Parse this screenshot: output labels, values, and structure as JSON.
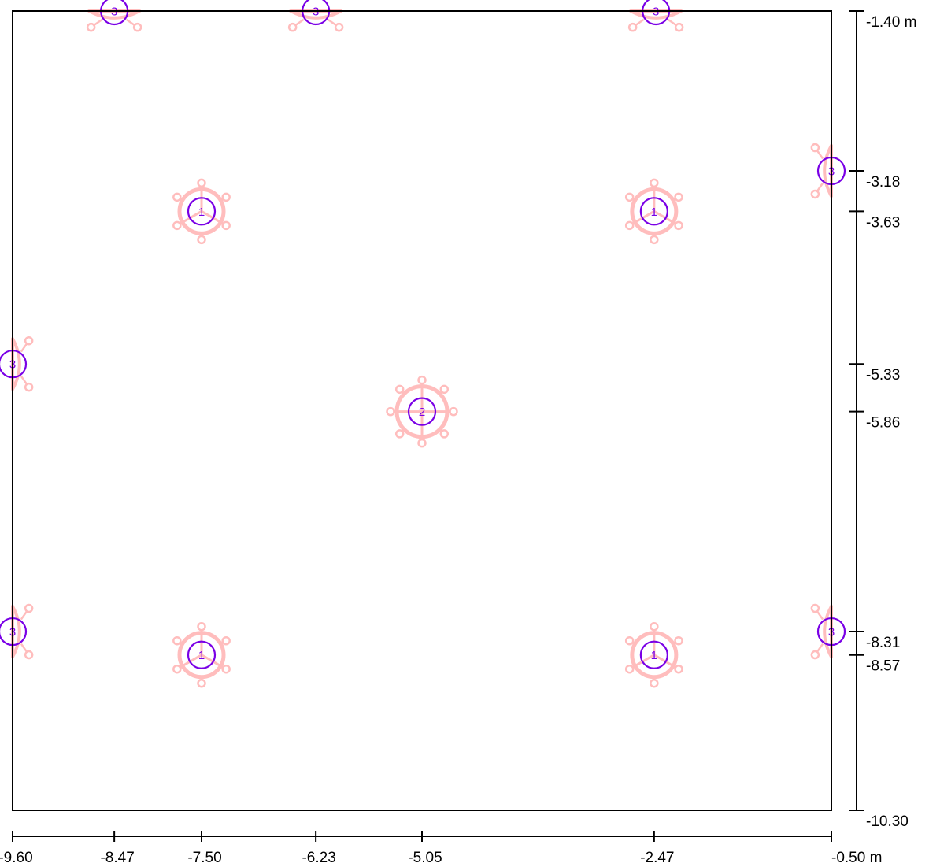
{
  "x_axis": {
    "ticks": [
      {
        "value": -9.6,
        "label": "-9.60"
      },
      {
        "value": -8.47,
        "label": "-8.47"
      },
      {
        "value": -7.5,
        "label": "-7.50"
      },
      {
        "value": -6.23,
        "label": "-6.23"
      },
      {
        "value": -5.05,
        "label": "-5.05"
      },
      {
        "value": -2.47,
        "label": "-2.47"
      },
      {
        "value": -0.5,
        "label": "-0.50 m"
      }
    ]
  },
  "y_axis": {
    "ticks": [
      {
        "value": -1.4,
        "label": "-1.40 m"
      },
      {
        "value": -3.18,
        "label": "-3.18"
      },
      {
        "value": -3.63,
        "label": "-3.63"
      },
      {
        "value": -5.33,
        "label": "-5.33"
      },
      {
        "value": -5.86,
        "label": "-5.86"
      },
      {
        "value": -8.31,
        "label": "-8.31"
      },
      {
        "value": -8.57,
        "label": "-8.57"
      },
      {
        "value": -10.3,
        "label": "-10.30"
      }
    ]
  },
  "fixtures": [
    {
      "label": "3",
      "x": -8.47,
      "y": -1.4,
      "kind": "wall-top"
    },
    {
      "label": "3",
      "x": -6.23,
      "y": -1.4,
      "kind": "wall-top"
    },
    {
      "label": "3",
      "x": -2.45,
      "y": -1.4,
      "kind": "wall-top"
    },
    {
      "label": "3",
      "x": -0.5,
      "y": -3.18,
      "kind": "wall-right"
    },
    {
      "label": "3",
      "x": -0.5,
      "y": -8.31,
      "kind": "wall-right"
    },
    {
      "label": "3",
      "x": -9.6,
      "y": -5.33,
      "kind": "wall-left"
    },
    {
      "label": "3",
      "x": -9.6,
      "y": -8.31,
      "kind": "wall-left"
    },
    {
      "label": "1",
      "x": -7.5,
      "y": -3.63,
      "kind": "center-3"
    },
    {
      "label": "1",
      "x": -2.47,
      "y": -3.63,
      "kind": "center-3"
    },
    {
      "label": "1",
      "x": -7.5,
      "y": -8.57,
      "kind": "center-3"
    },
    {
      "label": "1",
      "x": -2.47,
      "y": -8.57,
      "kind": "center-3"
    },
    {
      "label": "2",
      "x": -5.05,
      "y": -5.86,
      "kind": "center-4"
    }
  ],
  "colors": {
    "frame": "#000000",
    "fixture": "#ffbdbd",
    "marker": "#7a00e6"
  }
}
